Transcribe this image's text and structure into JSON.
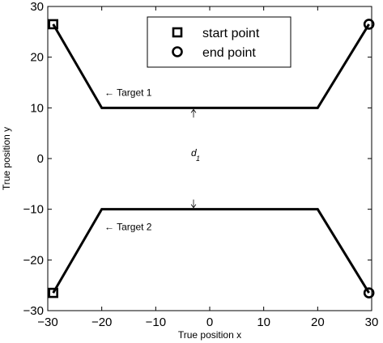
{
  "chart_data": {
    "type": "line",
    "xlabel": "True position x",
    "ylabel": "True position y",
    "xlim": [
      -30,
      30
    ],
    "ylim": [
      -30,
      30
    ],
    "xticks": [
      -30,
      -20,
      -10,
      0,
      10,
      20,
      30
    ],
    "yticks": [
      -30,
      -20,
      -10,
      0,
      10,
      20,
      30
    ],
    "xtick_labels": [
      "−30",
      "−20",
      "−10",
      "0",
      "10",
      "20",
      "30"
    ],
    "ytick_labels": [
      "−30",
      "−20",
      "−10",
      "0",
      "10",
      "20",
      "30"
    ],
    "grid": false,
    "legend_position": "top-center",
    "series": [
      {
        "marker_start": "square",
        "marker_end": "circle",
        "color": "#000000",
        "x": [
          -29,
          -20,
          20,
          29.5
        ],
        "y": [
          26.5,
          10,
          10,
          26.5
        ]
      },
      {
        "marker_start": "square",
        "marker_end": "circle",
        "color": "#000000",
        "x": [
          -29,
          -20,
          20,
          29.5
        ],
        "y": [
          -26.5,
          -10,
          -10,
          -26.5
        ]
      }
    ],
    "legend": [
      {
        "marker": "square",
        "label": "start point"
      },
      {
        "marker": "circle",
        "label": "end point"
      }
    ],
    "annotations": [
      {
        "text": "← Target 1",
        "x": -19.5,
        "y": 13
      },
      {
        "text": "← Target 2",
        "x": -19.5,
        "y": -13.5
      }
    ],
    "distance_annotation": {
      "symbol": "d",
      "subscript": "1",
      "x": -3,
      "y_top": 10,
      "y_bottom": -10
    }
  }
}
